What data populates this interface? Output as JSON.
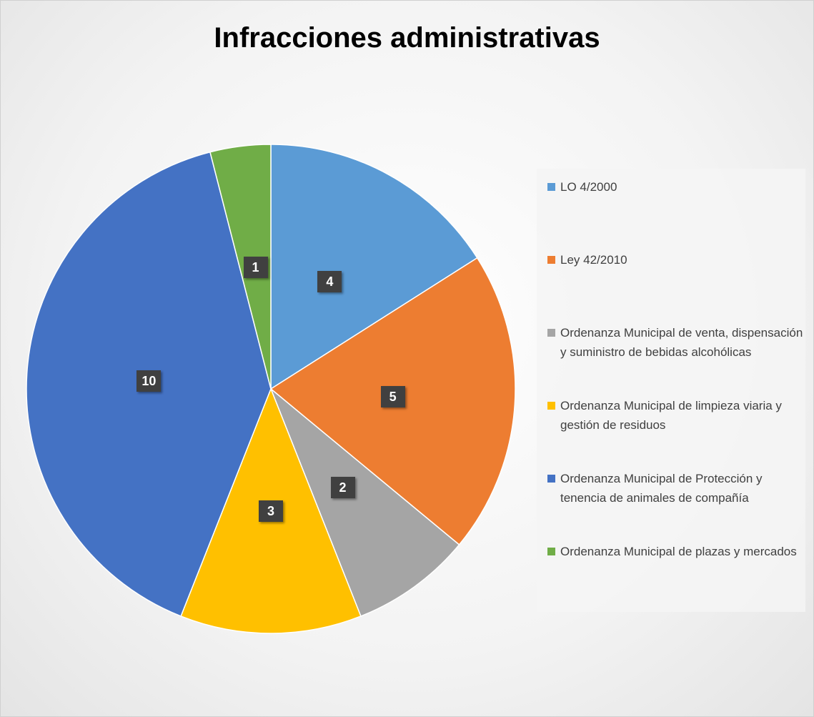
{
  "chart_data": {
    "type": "pie",
    "title": "Infracciones administrativas",
    "categories": [
      "LO 4/2000",
      "Ley 42/2010",
      "Ordenanza Municipal de venta, dispensación y suministro de bebidas alcohólicas",
      "Ordenanza Municipal de limpieza viaria y gestión de residuos",
      "Ordenanza Municipal de Protección y tenencia de animales de compañía",
      "Ordenanza Municipal de plazas y mercados"
    ],
    "values": [
      4,
      5,
      2,
      3,
      10,
      1
    ],
    "colors": [
      "#5b9bd5",
      "#ed7d31",
      "#a5a5a5",
      "#ffc000",
      "#4472c4",
      "#70ad47"
    ],
    "legend": "right"
  }
}
